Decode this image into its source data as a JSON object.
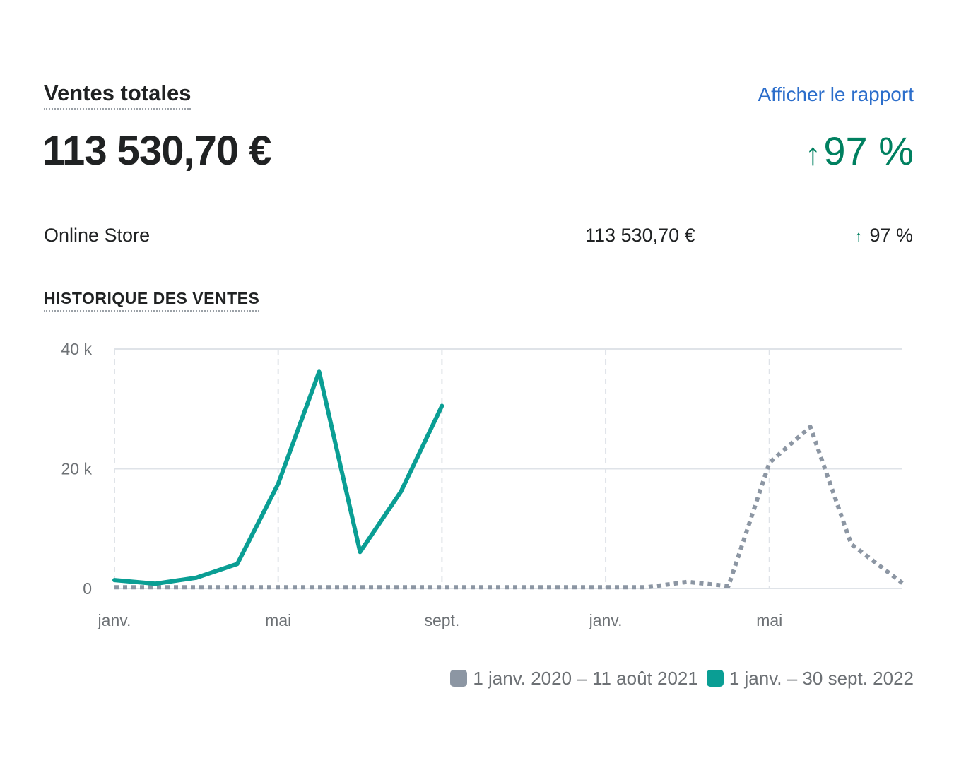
{
  "header": {
    "title": "Ventes totales",
    "report_link": "Afficher le rapport",
    "total": "113 530,70 €",
    "change_arrow": "↑",
    "change": "97 %"
  },
  "breakdown": [
    {
      "channel": "Online Store",
      "amount": "113 530,70 €",
      "arrow": "↑",
      "change": "97 %"
    }
  ],
  "section_title": "HISTORIQUE DES VENTES",
  "colors": {
    "current": "#0a9e94",
    "previous": "#8c96a3",
    "positive": "#008060",
    "link": "#2c6ecb"
  },
  "chart_data": {
    "type": "line",
    "y_ticks": [
      {
        "label": "40 k",
        "value": 40000
      },
      {
        "label": "20 k",
        "value": 20000
      },
      {
        "label": "0",
        "value": 0
      }
    ],
    "ylim": [
      0,
      40000
    ],
    "x_ticks": [
      {
        "label": "janv.",
        "index": 0
      },
      {
        "label": "mai",
        "index": 4
      },
      {
        "label": "sept.",
        "index": 8
      },
      {
        "label": "janv.",
        "index": 12
      },
      {
        "label": "mai",
        "index": 16
      }
    ],
    "x_range": [
      0,
      19.25
    ],
    "series": [
      {
        "name": "1 janv. – 30 sept. 2022",
        "style": "solid",
        "color": "#0a9e94",
        "x": [
          0,
          1,
          2,
          3,
          4,
          5,
          6,
          7,
          8
        ],
        "values": [
          1400,
          800,
          1800,
          4100,
          17500,
          36200,
          6100,
          16200,
          30500
        ]
      },
      {
        "name": "1 janv. 2020 – 11 août 2021",
        "style": "dotted",
        "color": "#8c96a3",
        "x": [
          0,
          1,
          2,
          3,
          4,
          5,
          6,
          7,
          8,
          9,
          10,
          11,
          12,
          13,
          14,
          15,
          16,
          17,
          18,
          19.25
        ],
        "values": [
          200,
          200,
          200,
          200,
          200,
          200,
          200,
          200,
          200,
          200,
          200,
          200,
          200,
          200,
          1100,
          400,
          21000,
          27000,
          7400,
          900
        ]
      }
    ],
    "legend": [
      {
        "label": "1 janv. 2020 – 11 août 2021",
        "color": "#8c96a3"
      },
      {
        "label": "1 janv. – 30 sept. 2022",
        "color": "#0a9e94"
      }
    ],
    "legend_position": "bottom-right",
    "grid": true
  }
}
